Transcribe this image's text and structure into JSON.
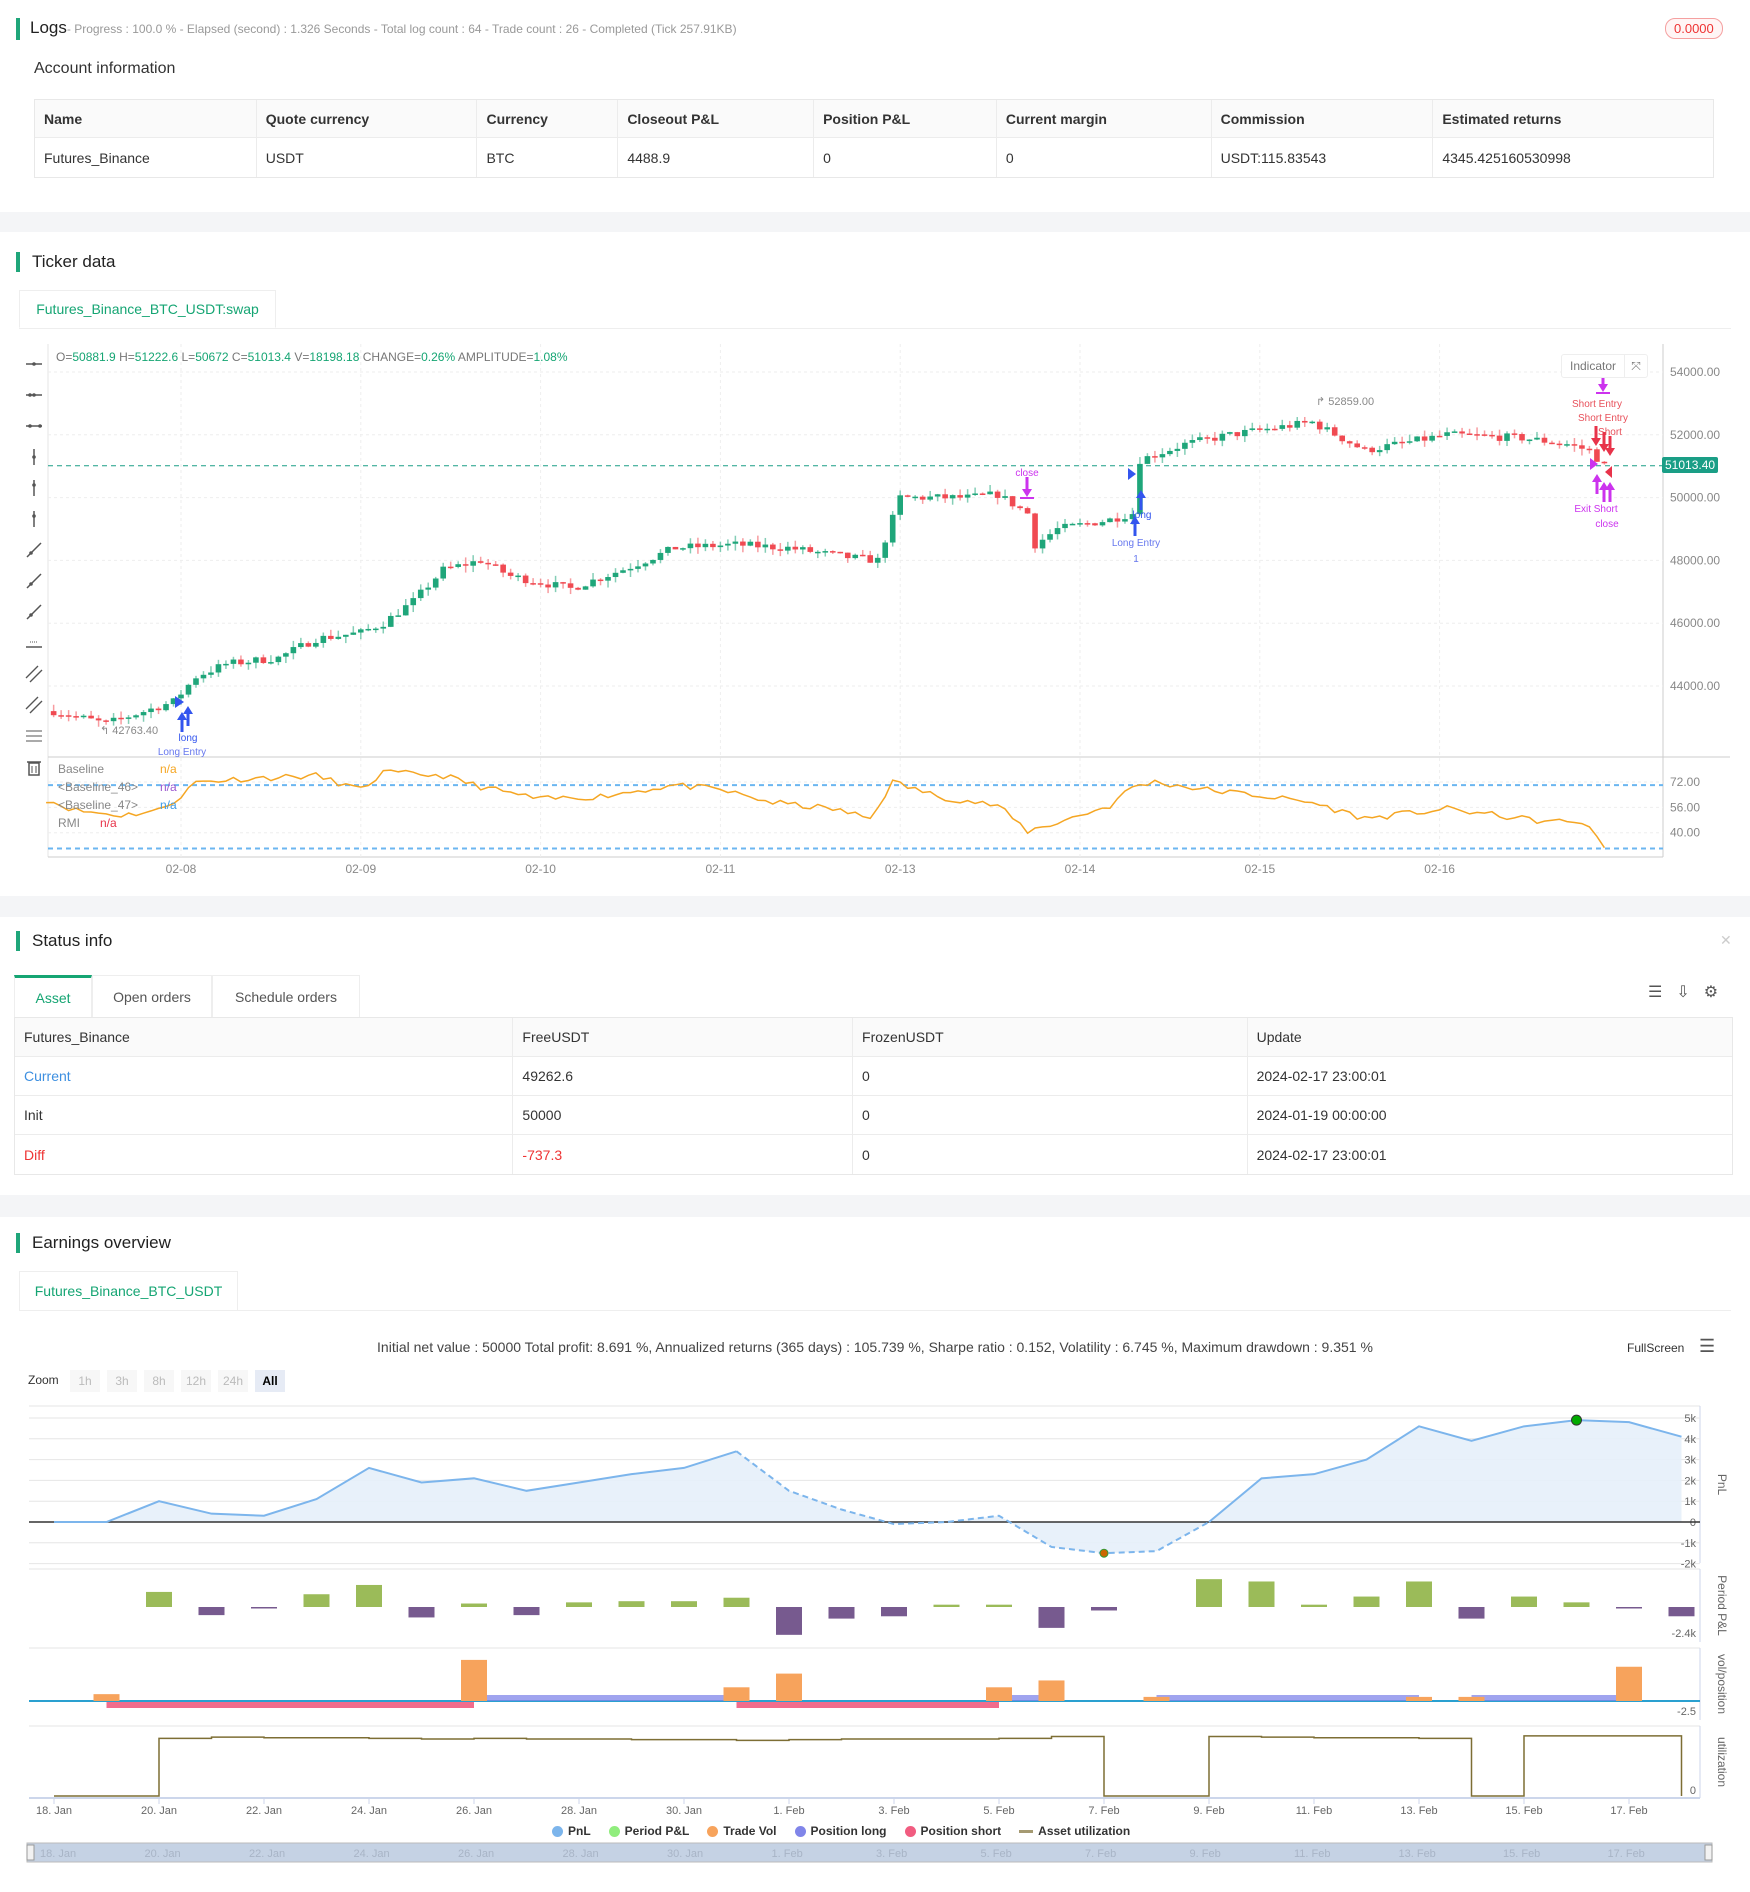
{
  "logs": {
    "title": "Logs",
    "summary": "- Progress : 100.0 % - Elapsed (second) : 1.326  Seconds - Total log count : 64 - Trade count : 26 - Completed (Tick 257.91KB)",
    "badge": "0.0000"
  },
  "account": {
    "title": "Account information",
    "columns": [
      "Name",
      "Quote currency",
      "Currency",
      "Closeout P&L",
      "Position P&L",
      "Current margin",
      "Commission",
      "Estimated returns"
    ],
    "rows": [
      [
        "Futures_Binance",
        "USDT",
        "BTC",
        "4488.9",
        "0",
        "0",
        "USDT:115.83543",
        "4345.425160530998"
      ]
    ]
  },
  "ticker": {
    "title": "Ticker data",
    "tab": "Futures_Binance_BTC_USDT:swap",
    "ohlc": {
      "o_label": "O=",
      "o": "50881.9",
      "h_label": "H=",
      "h": "51222.6",
      "l_label": "L=",
      "l": "50672",
      "c_label": "C=",
      "c": "51013.4",
      "v_label": "V=",
      "v": "18198.18",
      "change_label": "CHANGE=",
      "change": "0.26%",
      "amp_label": "AMPLITUDE=",
      "amp": "1.08%"
    },
    "indicator_button": "Indicator",
    "current_price": "51013.40",
    "high_label": "52859.00",
    "low_label": "42763.40",
    "price_ticks": [
      "54000.00",
      "52000.00",
      "50000.00",
      "48000.00",
      "46000.00",
      "44000.00"
    ],
    "rmi_ticks": [
      "72.00",
      "56.00",
      "40.00"
    ],
    "date_ticks": [
      "02-08",
      "02-09",
      "02-10",
      "02-11",
      "02-13",
      "02-14",
      "02-15",
      "02-16"
    ],
    "legend": [
      {
        "name": "Baseline",
        "value": "n/a",
        "color": "#f5a623"
      },
      {
        "name": "<Baseline_46>",
        "value": "n/a",
        "color": "#9b59d0"
      },
      {
        "name": "<Baseline_47>",
        "value": "n/a",
        "color": "#3d9be9"
      },
      {
        "name": "RMI",
        "value": "n/a",
        "color": "#e8334a"
      }
    ],
    "annotations": {
      "long1": "long",
      "long_entry1": "Long Entry",
      "close1": "close",
      "long2": "long",
      "long_entry2": "Long Entry",
      "entry_count": "1",
      "short_entry1": "Short Entry",
      "short_entry2": "Short Entry",
      "short": "Short",
      "exit_short": "Exit Short",
      "close2": "close"
    },
    "colors": {
      "up": "#1fa67a",
      "down": "#f04a52",
      "rmi": "#f5a623",
      "bands": "#6bb6f0",
      "signal_long": "#3355ee",
      "signal_close": "#cc33ee"
    }
  },
  "chart_data": [
    {
      "type": "candlestick",
      "ylim": [
        42000,
        55000
      ],
      "close_path": [
        [
          "02-07 07:00",
          43200
        ],
        [
          "02-07 14:00",
          42800
        ],
        [
          "02-07 23:00",
          43500
        ],
        [
          "02-08 02:00",
          44300
        ],
        [
          "02-08 06:00",
          44700
        ],
        [
          "02-08 13:00",
          44900
        ],
        [
          "02-08 18:00",
          45500
        ],
        [
          "02-09 00:00",
          45700
        ],
        [
          "02-09 03:00",
          46000
        ],
        [
          "02-09 07:00",
          46700
        ],
        [
          "02-09 11:00",
          47700
        ],
        [
          "02-09 16:00",
          48000
        ],
        [
          "02-09 20:00",
          47500
        ],
        [
          "02-10 04:00",
          47100
        ],
        [
          "02-10 12:00",
          47800
        ],
        [
          "02-10 18:00",
          48400
        ],
        [
          "02-11 02:00",
          48500
        ],
        [
          "02-11 09:00",
          48400
        ],
        [
          "02-11 17:00",
          48100
        ],
        [
          "02-11 21:00",
          48000
        ],
        [
          "02-13 00:00",
          50000
        ],
        [
          "02-13 09:00",
          50000
        ],
        [
          "02-13 13:00",
          50100
        ],
        [
          "02-13 17:00",
          49500
        ],
        [
          "02-13 18:00",
          48500
        ],
        [
          "02-13 21:00",
          49000
        ],
        [
          "02-14 04:00",
          49300
        ],
        [
          "02-14 07:00",
          49500
        ],
        [
          "02-14 08:00",
          51200
        ],
        [
          "02-14 14:00",
          51700
        ],
        [
          "02-14 20:00",
          52000
        ],
        [
          "02-15 07:00",
          52400
        ],
        [
          "02-15 14:00",
          51500
        ],
        [
          "02-16 01:00",
          52000
        ],
        [
          "02-16 11:00",
          51900
        ],
        [
          "02-16 17:00",
          51700
        ],
        [
          "02-16 20:00",
          51500
        ],
        [
          "02-16 22:00",
          51013.4
        ]
      ]
    },
    {
      "type": "line",
      "series_name": "RMI",
      "ylim": [
        25,
        82
      ],
      "bands": [
        70,
        30
      ],
      "points": [
        [
          "02-07 06:00",
          61
        ],
        [
          "02-07 10:00",
          54
        ],
        [
          "02-07 16:00",
          51
        ],
        [
          "02-07 21:00",
          54
        ],
        [
          "02-08 00:00",
          63
        ],
        [
          "02-08 02:00",
          72
        ],
        [
          "02-08 08:00",
          74
        ],
        [
          "02-08 18:00",
          76
        ],
        [
          "02-09 00:00",
          67
        ],
        [
          "02-09 03:00",
          78
        ],
        [
          "02-09 11:00",
          76
        ],
        [
          "02-09 16:00",
          69
        ],
        [
          "02-10 00:00",
          61
        ],
        [
          "02-10 08:00",
          63
        ],
        [
          "02-10 18:00",
          70
        ],
        [
          "02-11 00:00",
          67
        ],
        [
          "02-11 07:00",
          59
        ],
        [
          "02-11 15:00",
          55
        ],
        [
          "02-11 20:00",
          49
        ],
        [
          "02-11 23:00",
          72
        ],
        [
          "02-13 05:00",
          63
        ],
        [
          "02-13 13:00",
          57
        ],
        [
          "02-13 17:00",
          41
        ],
        [
          "02-13 20:00",
          45
        ],
        [
          "02-14 04:00",
          57
        ],
        [
          "02-14 07:00",
          69
        ],
        [
          "02-14 10:00",
          72
        ],
        [
          "02-14 17:00",
          67
        ],
        [
          "02-14 23:00",
          64
        ],
        [
          "02-15 07:00",
          59
        ],
        [
          "02-15 14:00",
          49
        ],
        [
          "02-16 01:00",
          55
        ],
        [
          "02-16 14:00",
          47
        ],
        [
          "02-16 19:00",
          47
        ],
        [
          "02-16 22:00",
          32
        ]
      ]
    },
    {
      "type": "line",
      "title": "Initial net value : 50000 Total profit: 8.691 %, Annualized returns (365 days) : 105.739 %, Sharpe ratio : 0.152, Volatility : 6.745 %, Maximum drawdown : 9.351 %",
      "x_dates": [
        "18 Jan",
        "19 Jan",
        "20 Jan",
        "21 Jan",
        "22 Jan",
        "23 Jan",
        "24 Jan",
        "25 Jan",
        "26 Jan",
        "27 Jan",
        "28 Jan",
        "29 Jan",
        "30 Jan",
        "31 Jan",
        "1 Feb",
        "2 Feb",
        "3 Feb",
        "4 Feb",
        "5 Feb",
        "6 Feb",
        "7 Feb",
        "8 Feb",
        "9 Feb",
        "10 Feb",
        "11 Feb",
        "12 Feb",
        "13 Feb",
        "14 Feb",
        "15 Feb",
        "16 Feb",
        "17 Feb",
        "18 Feb"
      ],
      "series": [
        {
          "name": "PnL",
          "unit": "k",
          "values": [
            0,
            0,
            1.0,
            0.4,
            0.3,
            1.1,
            2.6,
            1.9,
            2.1,
            1.5,
            1.9,
            2.3,
            2.6,
            3.4,
            1.5,
            0.6,
            -0.1,
            0,
            0.3,
            -1.2,
            -1.5,
            -1.4,
            0,
            2.1,
            2.3,
            3.0,
            4.6,
            3.9,
            4.6,
            4.9,
            4.8,
            4.1
          ],
          "drawdown_dashed_range": [
            "31 Jan",
            "9 Feb"
          ]
        },
        {
          "name": "Period P&L",
          "unit": "k",
          "values": [
            null,
            null,
            1.3,
            -0.7,
            -0.1,
            1.1,
            1.9,
            -0.9,
            0.3,
            -0.7,
            0.4,
            0.5,
            0.5,
            0.8,
            -2.4,
            -1.0,
            -0.8,
            0.2,
            0.2,
            -1.8,
            -0.3,
            null,
            2.4,
            2.2,
            0.2,
            0.9,
            2.2,
            -1.0,
            0.9,
            0.4,
            -0.1,
            -0.8
          ]
        },
        {
          "name": "Trade Vol",
          "values": {
            "19 Jan": 0.5,
            "26 Jan": 3.0,
            "31 Jan": 1.0,
            "1 Feb": 2.0,
            "5 Feb": 1.0,
            "6 Feb": 1.5,
            "8 Feb": 0.3,
            "13 Feb": 0.3,
            "14 Feb": 0.3,
            "17 Feb": 2.5
          }
        },
        {
          "name": "Position long",
          "ranges": [
            [
              "26 Jan",
              "31 Jan"
            ],
            [
              "5 Feb",
              "6 Feb"
            ],
            [
              "8 Feb",
              "13 Feb"
            ],
            [
              "14 Feb",
              "17 Feb"
            ]
          ]
        },
        {
          "name": "Position short",
          "ranges": [
            [
              "19 Jan",
              "26 Jan"
            ],
            [
              "31 Jan",
              "5 Feb"
            ]
          ]
        },
        {
          "name": "Asset utilization",
          "values": [
            0,
            0,
            0.9,
            0.92,
            0.91,
            0.91,
            0.9,
            0.89,
            0.9,
            0.89,
            0.89,
            0.88,
            0.88,
            0.87,
            0.88,
            0.89,
            0.89,
            0.89,
            0.9,
            0.93,
            0,
            0,
            0.93,
            0.92,
            0.91,
            0.91,
            0.9,
            0,
            0.94,
            0.94,
            0.94,
            0
          ]
        }
      ],
      "pnl_ticks": [
        "5k",
        "4k",
        "3k",
        "2k",
        "1k",
        "0",
        "-1k",
        "-2k"
      ],
      "period_tick": "-2.4k",
      "vol_tick": "-2.5",
      "util_tick": "0",
      "axis_titles": [
        "PnL",
        "Period P&L",
        "vol/position",
        "utilization"
      ],
      "x_ticks": [
        "18. Jan",
        "20. Jan",
        "22. Jan",
        "24. Jan",
        "26. Jan",
        "28. Jan",
        "30. Jan",
        "1. Feb",
        "3. Feb",
        "5. Feb",
        "7. Feb",
        "9. Feb",
        "11. Feb",
        "13. Feb",
        "15. Feb",
        "17. Feb"
      ],
      "colors": {
        "pnl": "#7cb5ec",
        "pnl_fill": "#e6f0fa",
        "period_pos": "#9bbb59",
        "period_neg": "#775a8f",
        "vol": "#f7a35c",
        "long": "#8085e9",
        "short": "#f15c80",
        "util": "#7d6e34"
      }
    }
  ],
  "status": {
    "title": "Status info",
    "tabs": [
      "Asset",
      "Open orders",
      "Schedule orders"
    ],
    "columns": [
      "Futures_Binance",
      "FreeUSDT",
      "FrozenUSDT",
      "Update"
    ],
    "rows": [
      [
        "Current",
        "49262.6",
        "0",
        "2024-02-17 23:00:01"
      ],
      [
        "Init",
        "50000",
        "0",
        "2024-01-19 00:00:00"
      ],
      [
        "Diff",
        "-737.3",
        "0",
        "2024-02-17 23:00:01"
      ]
    ]
  },
  "earnings": {
    "title": "Earnings overview",
    "tab": "Futures_Binance_BTC_USDT",
    "fullscreen": "FullScreen",
    "zoom_label": "Zoom",
    "zoom_options": [
      "1h",
      "3h",
      "8h",
      "12h",
      "24h",
      "All"
    ],
    "legend": [
      {
        "name": "PnL",
        "color": "#7cb5ec"
      },
      {
        "name": "Period P&L",
        "color": "#90ed7d"
      },
      {
        "name": "Trade Vol",
        "color": "#f7a35c"
      },
      {
        "name": "Position long",
        "color": "#8085e9"
      },
      {
        "name": "Position short",
        "color": "#f15c80"
      },
      {
        "name": "Asset utilization",
        "color": "#a59a72"
      }
    ],
    "navigator_ticks": [
      "18. Jan",
      "20. Jan",
      "22. Jan",
      "24. Jan",
      "26. Jan",
      "28. Jan",
      "30. Jan",
      "1. Feb",
      "3. Feb",
      "5. Feb",
      "7. Feb",
      "9. Feb",
      "11. Feb",
      "13. Feb",
      "15. Feb",
      "17. Feb"
    ]
  }
}
